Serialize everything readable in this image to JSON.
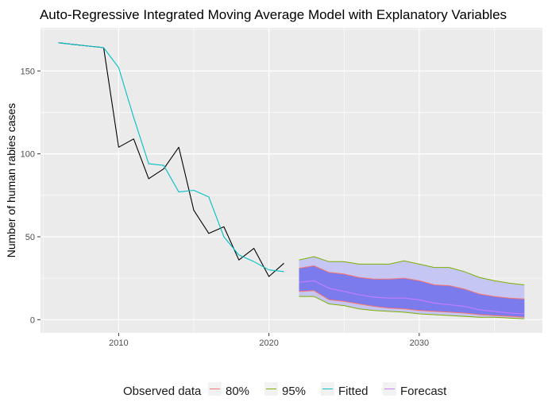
{
  "chart_data": {
    "type": "line",
    "title": "Auto-Regressive Integrated Moving Average Model with Explanatory Variables",
    "xlabel": "",
    "ylabel": "Number of human rabies cases",
    "xlim": [
      2004.8,
      2038.2
    ],
    "ylim": [
      -8,
      176
    ],
    "x_ticks": [
      2010,
      2020,
      2030
    ],
    "y_ticks": [
      0,
      50,
      100,
      150
    ],
    "grid": true,
    "legend_position": "bottom",
    "legend": {
      "title": "Observed data",
      "entries": [
        "80%",
        "95%",
        "Fitted",
        "Forecast"
      ]
    },
    "colors": {
      "observed": "#000000",
      "fitted": "#00BFC4",
      "forecast": "#C77CFF",
      "band80_line": "#F8766D",
      "band95_line": "#7CAE00",
      "band80_fill": "#7B7BEE",
      "band95_fill": "#C6C6F5",
      "panel": "#EBEBEB"
    },
    "series": [
      {
        "name": "Observed data",
        "x": [
          2006,
          2007,
          2008,
          2009,
          2010,
          2011,
          2012,
          2013,
          2014,
          2015,
          2016,
          2017,
          2018,
          2019,
          2020,
          2021
        ],
        "values": [
          167,
          166,
          165,
          164,
          104,
          109,
          85,
          91,
          104,
          66,
          52,
          56,
          36,
          43,
          26,
          34
        ]
      },
      {
        "name": "Fitted",
        "x": [
          2006,
          2007,
          2008,
          2009,
          2010,
          2011,
          2012,
          2013,
          2014,
          2015,
          2016,
          2017,
          2018,
          2019,
          2020,
          2021
        ],
        "values": [
          167,
          166,
          165,
          164,
          152,
          122,
          94,
          93,
          77,
          78,
          74,
          50,
          39,
          35,
          30,
          29
        ]
      },
      {
        "name": "Forecast",
        "x": [
          2022,
          2023,
          2024,
          2025,
          2026,
          2027,
          2028,
          2029,
          2030,
          2031,
          2032,
          2033,
          2034,
          2035,
          2036,
          2037
        ],
        "values": [
          22.5,
          23.5,
          19,
          17,
          15,
          13.5,
          13,
          13,
          12,
          10,
          9,
          8,
          6,
          5,
          4,
          3.5
        ]
      }
    ],
    "bands": [
      {
        "name": "95%",
        "x": [
          2022,
          2023,
          2024,
          2025,
          2026,
          2027,
          2028,
          2029,
          2030,
          2031,
          2032,
          2033,
          2034,
          2035,
          2036,
          2037
        ],
        "lower": [
          14,
          14,
          9.5,
          8.5,
          6.5,
          5.5,
          5,
          4.5,
          3.5,
          3,
          2.5,
          2,
          1.5,
          1.5,
          1,
          0.5
        ],
        "upper": [
          36,
          38,
          35,
          35,
          33.5,
          33.5,
          33.5,
          35.5,
          33.5,
          31.5,
          31.5,
          29,
          25.5,
          23.5,
          22,
          21
        ]
      },
      {
        "name": "80%",
        "x": [
          2022,
          2023,
          2024,
          2025,
          2026,
          2027,
          2028,
          2029,
          2030,
          2031,
          2032,
          2033,
          2034,
          2035,
          2036,
          2037
        ],
        "lower": [
          17,
          17.5,
          12,
          11,
          9.5,
          8,
          7,
          6.5,
          5.5,
          5,
          4.5,
          4,
          3,
          2.5,
          2,
          1.5
        ],
        "upper": [
          31,
          32.5,
          28.5,
          27.5,
          25.5,
          24.5,
          24.5,
          25,
          23.5,
          21,
          20.5,
          18.5,
          15.5,
          14,
          13,
          12.5
        ]
      }
    ]
  }
}
